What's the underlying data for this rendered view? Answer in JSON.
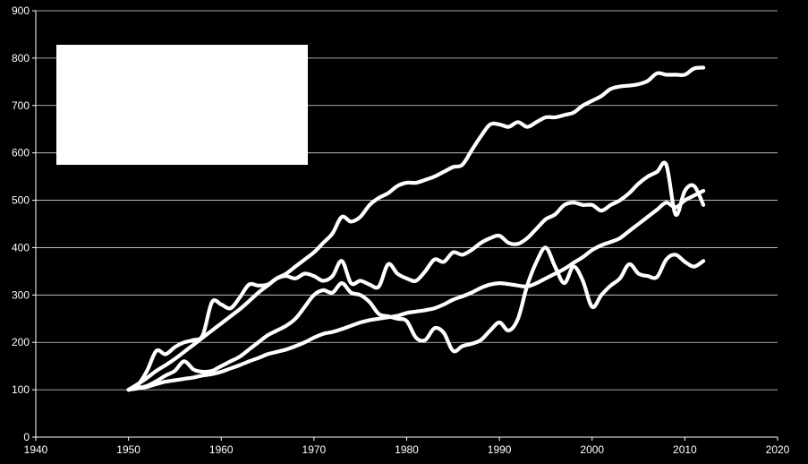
{
  "chart_data": {
    "type": "line",
    "title": "",
    "xlabel": "",
    "ylabel": "",
    "xlim": [
      1940,
      2020
    ],
    "ylim": [
      0,
      900
    ],
    "x_ticks": [
      1940,
      1950,
      1960,
      1970,
      1980,
      1990,
      2000,
      2010,
      2020
    ],
    "y_ticks": [
      0,
      100,
      200,
      300,
      400,
      500,
      600,
      700,
      800,
      900
    ],
    "grid": "horizontal",
    "legend": "top-left (blank white box)",
    "colors": {
      "background": "#000000",
      "line": "#ffffff",
      "grid": "#ffffff",
      "legend_box": "#ffffff"
    },
    "series": [
      {
        "x": [
          1950,
          1951,
          1952,
          1953,
          1954,
          1955,
          1956,
          1957,
          1958,
          1959,
          1960,
          1961,
          1962,
          1963,
          1964,
          1965,
          1966,
          1967,
          1968,
          1969,
          1970,
          1971,
          1972,
          1973,
          1974,
          1975,
          1976,
          1977,
          1978,
          1979,
          1980,
          1981,
          1982,
          1983,
          1984,
          1985,
          1986,
          1987,
          1988,
          1989,
          1990,
          1991,
          1992,
          1993,
          1994,
          1995,
          1996,
          1997,
          1998,
          1999,
          2000,
          2001,
          2002,
          2003,
          2004,
          2005,
          2006,
          2007,
          2008,
          2009,
          2010,
          2011,
          2012
        ],
        "values": [
          100,
          112,
          125,
          140,
          152,
          165,
          180,
          195,
          210,
          225,
          240,
          255,
          270,
          287,
          305,
          320,
          335,
          345,
          360,
          375,
          390,
          410,
          430,
          465,
          455,
          465,
          490,
          505,
          515,
          530,
          537,
          537,
          543,
          550,
          560,
          570,
          575,
          605,
          635,
          660,
          660,
          655,
          665,
          655,
          665,
          675,
          675,
          680,
          685,
          700,
          710,
          720,
          735,
          740,
          742,
          745,
          752,
          768,
          765,
          765,
          765,
          778,
          780
        ]
      },
      {
        "x": [
          1950,
          1951,
          1952,
          1953,
          1954,
          1955,
          1956,
          1957,
          1958,
          1959,
          1960,
          1961,
          1962,
          1963,
          1964,
          1965,
          1966,
          1967,
          1968,
          1969,
          1970,
          1971,
          1972,
          1973,
          1974,
          1975,
          1976,
          1977,
          1978,
          1979,
          1980,
          1981,
          1982,
          1983,
          1984,
          1985,
          1986,
          1987,
          1988,
          1989,
          1990,
          1991,
          1992,
          1993,
          1994,
          1995,
          1996,
          1997,
          1998,
          1999,
          2000,
          2001,
          2002,
          2003,
          2004,
          2005,
          2006,
          2007,
          2008,
          2009,
          2010,
          2011,
          2012
        ],
        "values": [
          100,
          110,
          140,
          182,
          175,
          190,
          200,
          205,
          215,
          285,
          280,
          272,
          295,
          322,
          320,
          322,
          335,
          340,
          335,
          345,
          340,
          330,
          340,
          372,
          325,
          330,
          322,
          318,
          365,
          345,
          335,
          330,
          350,
          375,
          370,
          390,
          385,
          395,
          410,
          420,
          425,
          410,
          408,
          420,
          440,
          460,
          470,
          490,
          495,
          490,
          490,
          478,
          490,
          500,
          515,
          535,
          550,
          560,
          575,
          470,
          520,
          530,
          490
        ]
      },
      {
        "x": [
          1950,
          1951,
          1952,
          1953,
          1954,
          1955,
          1956,
          1957,
          1958,
          1959,
          1960,
          1961,
          1962,
          1963,
          1964,
          1965,
          1966,
          1967,
          1968,
          1969,
          1970,
          1971,
          1972,
          1973,
          1974,
          1975,
          1976,
          1977,
          1978,
          1979,
          1980,
          1981,
          1982,
          1983,
          1984,
          1985,
          1986,
          1987,
          1988,
          1989,
          1990,
          1991,
          1992,
          1993,
          1994,
          1995,
          1996,
          1997,
          1998,
          1999,
          2000,
          2001,
          2002,
          2003,
          2004,
          2005,
          2006,
          2007,
          2008,
          2009,
          2010,
          2011,
          2012
        ],
        "values": [
          100,
          104,
          108,
          118,
          130,
          140,
          160,
          143,
          138,
          140,
          150,
          160,
          170,
          185,
          200,
          215,
          225,
          235,
          250,
          275,
          300,
          310,
          305,
          325,
          305,
          300,
          285,
          260,
          255,
          250,
          245,
          210,
          205,
          230,
          220,
          182,
          192,
          197,
          205,
          225,
          242,
          225,
          250,
          320,
          370,
          400,
          360,
          325,
          360,
          330,
          275,
          300,
          320,
          335,
          365,
          345,
          340,
          338,
          375,
          385,
          370,
          360,
          372
        ]
      },
      {
        "x": [
          1950,
          1951,
          1952,
          1953,
          1954,
          1955,
          1956,
          1957,
          1958,
          1959,
          1960,
          1961,
          1962,
          1963,
          1964,
          1965,
          1966,
          1967,
          1968,
          1969,
          1970,
          1971,
          1972,
          1973,
          1974,
          1975,
          1976,
          1977,
          1978,
          1979,
          1980,
          1981,
          1982,
          1983,
          1984,
          1985,
          1986,
          1987,
          1988,
          1989,
          1990,
          1991,
          1992,
          1993,
          1994,
          1995,
          1996,
          1997,
          1998,
          1999,
          2000,
          2001,
          2002,
          2003,
          2004,
          2005,
          2006,
          2007,
          2008,
          2009,
          2010,
          2011,
          2012
        ],
        "values": [
          100,
          103,
          106,
          112,
          117,
          120,
          123,
          126,
          130,
          133,
          138,
          145,
          152,
          160,
          167,
          175,
          180,
          185,
          192,
          200,
          210,
          218,
          222,
          228,
          235,
          242,
          247,
          250,
          253,
          256,
          262,
          265,
          268,
          272,
          280,
          290,
          297,
          305,
          315,
          322,
          325,
          323,
          320,
          318,
          325,
          335,
          345,
          355,
          368,
          380,
          395,
          405,
          412,
          420,
          435,
          450,
          465,
          480,
          495,
          485,
          500,
          510,
          520
        ]
      }
    ]
  }
}
